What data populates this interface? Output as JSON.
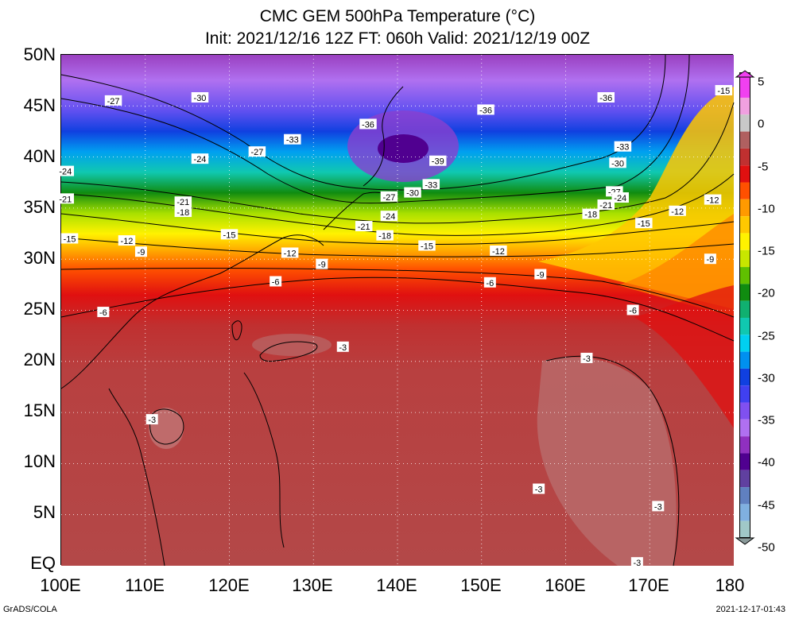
{
  "title": {
    "line1": "CMC GEM 500hPa Temperature (°C)",
    "line2": "Init: 2021/12/16 12Z  FT: 060h  Valid: 2021/12/19 00Z"
  },
  "lat_labels": [
    "50N",
    "45N",
    "40N",
    "35N",
    "30N",
    "25N",
    "20N",
    "15N",
    "10N",
    "5N",
    "EQ"
  ],
  "lon_labels": [
    "100E",
    "110E",
    "120E",
    "130E",
    "140E",
    "150E",
    "160E",
    "170E",
    "180"
  ],
  "colorbar": {
    "labels": [
      "5",
      "0",
      "-5",
      "-10",
      "-15",
      "-20",
      "-25",
      "-30",
      "-35",
      "-40",
      "-45",
      "-50"
    ],
    "stops": [
      {
        "v": 5,
        "c": "#f040f0"
      },
      {
        "v": 2,
        "c": "#f0a0e0"
      },
      {
        "v": 0,
        "c": "#c8c8c8"
      },
      {
        "v": -2,
        "c": "#b06060"
      },
      {
        "v": -4,
        "c": "#c03030"
      },
      {
        "v": -6,
        "c": "#e01010"
      },
      {
        "v": -8,
        "c": "#ff5000"
      },
      {
        "v": -10,
        "c": "#ff9a00"
      },
      {
        "v": -12,
        "c": "#ffc800"
      },
      {
        "v": -14,
        "c": "#fff200"
      },
      {
        "v": -16,
        "c": "#c8e600"
      },
      {
        "v": -18,
        "c": "#60c000"
      },
      {
        "v": -20,
        "c": "#108c10"
      },
      {
        "v": -22,
        "c": "#10b070"
      },
      {
        "v": -24,
        "c": "#10c8b0"
      },
      {
        "v": -26,
        "c": "#00d0f0"
      },
      {
        "v": -28,
        "c": "#0090f0"
      },
      {
        "v": -30,
        "c": "#1040e0"
      },
      {
        "v": -32,
        "c": "#4040f0"
      },
      {
        "v": -34,
        "c": "#8050f0"
      },
      {
        "v": -36,
        "c": "#b070f0"
      },
      {
        "v": -38,
        "c": "#9030c0"
      },
      {
        "v": -40,
        "c": "#500090"
      },
      {
        "v": -42,
        "c": "#6040a0"
      },
      {
        "v": -44,
        "c": "#6080c0"
      },
      {
        "v": -46,
        "c": "#80b0e0"
      },
      {
        "v": -48,
        "c": "#a0c8c8"
      },
      {
        "v": -50,
        "c": "#8a9a9a"
      }
    ]
  },
  "contour_labels": [
    {
      "text": "-27",
      "lon": 106.2,
      "lat": 45.5
    },
    {
      "text": "-30",
      "lon": 116.5,
      "lat": 45.8
    },
    {
      "text": "-36",
      "lon": 136.5,
      "lat": 43.2
    },
    {
      "text": "-36",
      "lon": 150.5,
      "lat": 44.6
    },
    {
      "text": "-36",
      "lon": 164.8,
      "lat": 45.8
    },
    {
      "text": "-33",
      "lon": 127.5,
      "lat": 41.7
    },
    {
      "text": "-27",
      "lon": 123.3,
      "lat": 40.5
    },
    {
      "text": "-24",
      "lon": 116.5,
      "lat": 39.8
    },
    {
      "text": "-39",
      "lon": 144.8,
      "lat": 39.6
    },
    {
      "text": "-33",
      "lon": 166.8,
      "lat": 41.0
    },
    {
      "text": "-30",
      "lon": 166.2,
      "lat": 39.4
    },
    {
      "text": "-33",
      "lon": 144.0,
      "lat": 37.3
    },
    {
      "text": "-30",
      "lon": 141.8,
      "lat": 36.5
    },
    {
      "text": "-27",
      "lon": 139.0,
      "lat": 36.1
    },
    {
      "text": "-27",
      "lon": 165.8,
      "lat": 36.6
    },
    {
      "text": "-24",
      "lon": 166.5,
      "lat": 36.0
    },
    {
      "text": "-21",
      "lon": 164.8,
      "lat": 35.3
    },
    {
      "text": "-18",
      "lon": 163.0,
      "lat": 34.4
    },
    {
      "text": "-24",
      "lon": 139.0,
      "lat": 34.2
    },
    {
      "text": "-21",
      "lon": 136.0,
      "lat": 33.2
    },
    {
      "text": "-18",
      "lon": 138.5,
      "lat": 32.3
    },
    {
      "text": "-21",
      "lon": 114.5,
      "lat": 35.6
    },
    {
      "text": "-18",
      "lon": 114.5,
      "lat": 34.6
    },
    {
      "text": "-15",
      "lon": 120.0,
      "lat": 32.4
    },
    {
      "text": "-15",
      "lon": 143.5,
      "lat": 31.3
    },
    {
      "text": "-15",
      "lon": 169.3,
      "lat": 33.5
    },
    {
      "text": "-12",
      "lon": 177.5,
      "lat": 35.8
    },
    {
      "text": "-12",
      "lon": 173.3,
      "lat": 34.7
    },
    {
      "text": "-12",
      "lon": 107.8,
      "lat": 31.8
    },
    {
      "text": "-12",
      "lon": 127.2,
      "lat": 30.6
    },
    {
      "text": "-12",
      "lon": 152.0,
      "lat": 30.8
    },
    {
      "text": "-15",
      "lon": 101.0,
      "lat": 32.0
    },
    {
      "text": "-9",
      "lon": 109.5,
      "lat": 30.7
    },
    {
      "text": "-9",
      "lon": 131.0,
      "lat": 29.5
    },
    {
      "text": "-9",
      "lon": 157.0,
      "lat": 28.5
    },
    {
      "text": "-9",
      "lon": 177.2,
      "lat": 30.0
    },
    {
      "text": "-6",
      "lon": 125.5,
      "lat": 27.8
    },
    {
      "text": "-6",
      "lon": 151.0,
      "lat": 27.7
    },
    {
      "text": "-6",
      "lon": 105.0,
      "lat": 24.8
    },
    {
      "text": "-6",
      "lon": 168.0,
      "lat": 25.0
    },
    {
      "text": "-3",
      "lon": 133.5,
      "lat": 21.4
    },
    {
      "text": "-3",
      "lon": 162.5,
      "lat": 20.3
    },
    {
      "text": "-3",
      "lon": 110.8,
      "lat": 14.3
    },
    {
      "text": "-3",
      "lon": 156.8,
      "lat": 7.5
    },
    {
      "text": "-3",
      "lon": 171.0,
      "lat": 5.8
    },
    {
      "text": "-3",
      "lon": 168.5,
      "lat": 0.3
    },
    {
      "text": "-15",
      "lon": 178.8,
      "lat": 46.5
    },
    {
      "text": "-24",
      "lon": 100.5,
      "lat": 38.6
    },
    {
      "text": "-21",
      "lon": 100.5,
      "lat": 35.9
    }
  ],
  "footer": {
    "left": "GrADS/COLA",
    "right": "2021-12-17-01:43"
  }
}
